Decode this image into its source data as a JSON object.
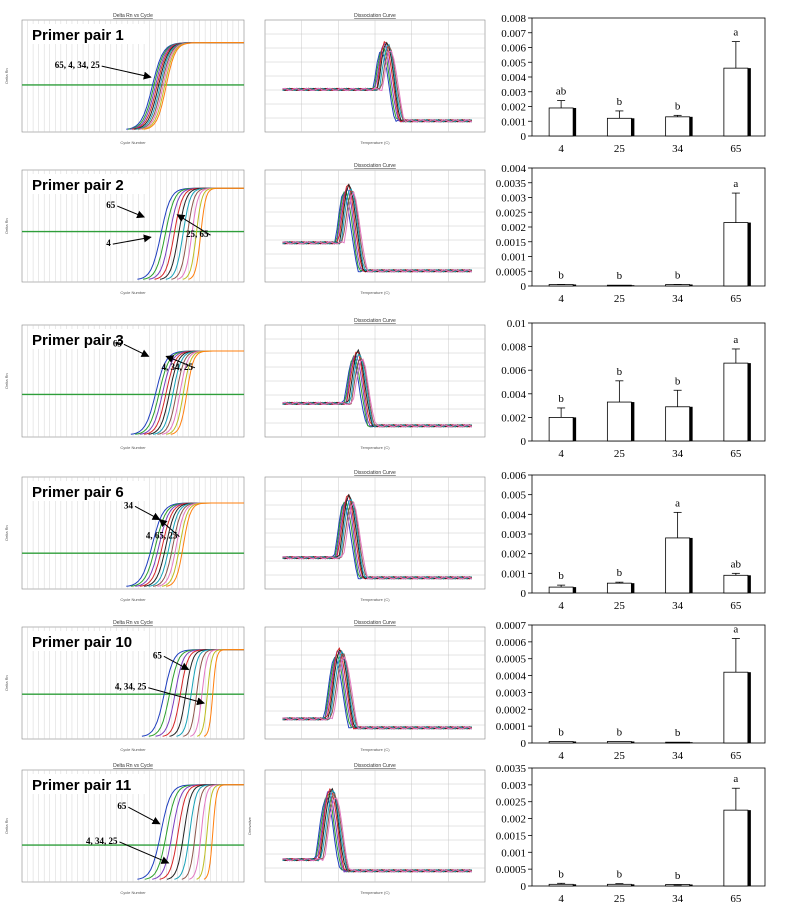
{
  "rows": [
    {
      "label": "Primer pair 1",
      "amp_title": "Delta Rn vs Cycle",
      "amp_xlabel": "Cycle Number",
      "amp_ylabel": "Delta Rn",
      "amp_annotations": [
        {
          "text": "65, 4, 34, 25"
        }
      ],
      "diss_title": "Dissociation Curve",
      "diss_xlabel": "Temperature (C)",
      "diss_ylabel": "",
      "bars": {
        "type": "bar",
        "categories": [
          "4",
          "25",
          "34",
          "65"
        ],
        "values": [
          0.0019,
          0.0012,
          0.0013,
          0.0046
        ],
        "errors": [
          0.0005,
          0.0005,
          0.0001,
          0.0018
        ],
        "letters": [
          "ab",
          "b",
          "b",
          "a"
        ],
        "ylim": [
          0,
          0.008
        ],
        "yticks": [
          "0",
          "0.001",
          "0.002",
          "0.003",
          "0.004",
          "0.005",
          "0.006",
          "0.007",
          "0.008"
        ]
      }
    },
    {
      "label": "Primer pair 2",
      "amp_title": "",
      "amp_xlabel": "Cycle Number",
      "amp_ylabel": "Delta Rn",
      "amp_annotations": [
        {
          "text": "65"
        },
        {
          "text": "4"
        },
        {
          "text": "25, 65"
        }
      ],
      "diss_title": "Dissociation Curve",
      "diss_xlabel": "Temperature (C)",
      "diss_ylabel": "",
      "bars": {
        "type": "bar",
        "categories": [
          "4",
          "25",
          "34",
          "65"
        ],
        "values": [
          3e-05,
          0.0,
          3e-05,
          0.00215
        ],
        "errors": [
          2e-05,
          0.0,
          2e-05,
          0.001
        ],
        "letters": [
          "b",
          "b",
          "b",
          "a"
        ],
        "ylim": [
          0,
          0.004
        ],
        "yticks": [
          "0",
          "0.0005",
          "0.001",
          "0.0015",
          "0.002",
          "0.0025",
          "0.003",
          "0.0035",
          "0.004"
        ]
      }
    },
    {
      "label": "Primer pair 3",
      "amp_title": "",
      "amp_xlabel": "Cycle Number",
      "amp_ylabel": "Delta Rn",
      "amp_annotations": [
        {
          "text": "65"
        },
        {
          "text": "4, 34, 25"
        }
      ],
      "diss_title": "Dissociation Curve",
      "diss_xlabel": "Temperature (C)",
      "diss_ylabel": "",
      "bars": {
        "type": "bar",
        "categories": [
          "4",
          "25",
          "34",
          "65"
        ],
        "values": [
          0.002,
          0.0033,
          0.0029,
          0.0066
        ],
        "errors": [
          0.0008,
          0.0018,
          0.0014,
          0.0012
        ],
        "letters": [
          "b",
          "b",
          "b",
          "a"
        ],
        "ylim": [
          0,
          0.01
        ],
        "yticks": [
          "0",
          "0.002",
          "0.004",
          "0.006",
          "0.008",
          "0.01"
        ]
      }
    },
    {
      "label": "Primer pair 6",
      "amp_title": "",
      "amp_xlabel": "Cycle Number",
      "amp_ylabel": "Delta Rn",
      "amp_annotations": [
        {
          "text": "34"
        },
        {
          "text": "4, 65, 25"
        }
      ],
      "diss_title": "Dissociation Curve",
      "diss_xlabel": "Temperature (C)",
      "diss_ylabel": "",
      "bars": {
        "type": "bar",
        "categories": [
          "4",
          "25",
          "34",
          "65"
        ],
        "values": [
          0.0003,
          0.0005,
          0.0028,
          0.0009
        ],
        "errors": [
          0.0001,
          5e-05,
          0.0013,
          0.0001
        ],
        "letters": [
          "b",
          "b",
          "a",
          "ab"
        ],
        "ylim": [
          0,
          0.006
        ],
        "yticks": [
          "0",
          "0.001",
          "0.002",
          "0.003",
          "0.004",
          "0.005",
          "0.006"
        ]
      }
    },
    {
      "label": "Primer pair 10",
      "amp_title": "Delta Rn vs Cycle",
      "amp_xlabel": "Cycle Number",
      "amp_ylabel": "Delta Rn",
      "amp_annotations": [
        {
          "text": "65"
        },
        {
          "text": "4, 34, 25"
        }
      ],
      "diss_title": "Dissociation Curve",
      "diss_xlabel": "Temperature (C)",
      "diss_ylabel": "",
      "bars": {
        "type": "bar",
        "categories": [
          "4",
          "25",
          "34",
          "65"
        ],
        "values": [
          3e-06,
          2e-06,
          0.0,
          0.00042
        ],
        "errors": [
          0.0,
          0.0,
          0.0,
          0.0002
        ],
        "letters": [
          "b",
          "b",
          "b",
          "a"
        ],
        "ylim": [
          0,
          0.0007
        ],
        "yticks": [
          "0",
          "0.0001",
          "0.0002",
          "0.0003",
          "0.0004",
          "0.0005",
          "0.0006",
          "0.0007"
        ]
      }
    },
    {
      "label": "Primer pair 11",
      "amp_title": "Delta Rn vs Cycle",
      "amp_xlabel": "Cycle Number",
      "amp_ylabel": "Delta Rn",
      "amp_annotations": [
        {
          "text": "65"
        },
        {
          "text": "4, 34, 25"
        }
      ],
      "diss_title": "Dissociation Curve",
      "diss_xlabel": "Temperature (C)",
      "diss_ylabel": "Derivative",
      "bars": {
        "type": "bar",
        "categories": [
          "4",
          "25",
          "34",
          "65"
        ],
        "values": [
          5e-05,
          5e-05,
          2e-05,
          0.00225
        ],
        "errors": [
          3e-05,
          2e-05,
          1e-05,
          0.00065
        ],
        "letters": [
          "b",
          "b",
          "b",
          "a"
        ],
        "ylim": [
          0,
          0.0035
        ],
        "yticks": [
          "0",
          "0.0005",
          "0.001",
          "0.0015",
          "0.002",
          "0.0025",
          "0.003",
          "0.0035"
        ]
      }
    }
  ],
  "colors": {
    "threshold": "#2e9e3a",
    "grid": "#c8c8c8",
    "curves": [
      "#1f3fbf",
      "#2ca02c",
      "#7a3fbf",
      "#d62728",
      "#222222",
      "#17a2b8",
      "#8c564b",
      "#e377c2",
      "#bcbd22",
      "#ff7f0e"
    ]
  }
}
